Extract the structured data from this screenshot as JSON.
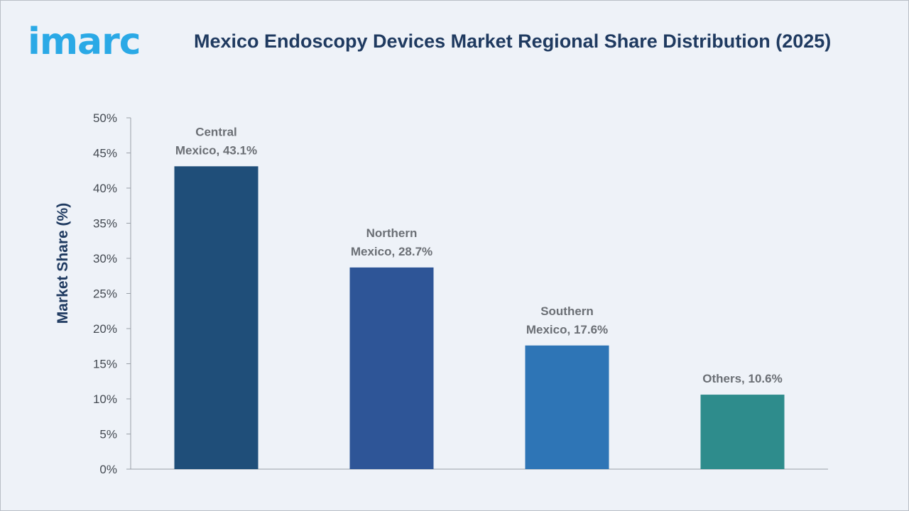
{
  "brand": {
    "logo_text": "imarc",
    "logo_color": "#2aa9e6"
  },
  "chart_data": {
    "type": "bar",
    "title": "Mexico Endoscopy Devices Market Regional Share Distribution (2025)",
    "ylabel": "Market Share (%)",
    "xlabel": "",
    "ylim": [
      0,
      50
    ],
    "yticks": [
      "0%",
      "5%",
      "10%",
      "15%",
      "20%",
      "25%",
      "30%",
      "35%",
      "40%",
      "45%",
      "50%"
    ],
    "categories": [
      "Central Mexico",
      "Northern Mexico",
      "Southern Mexico",
      "Others"
    ],
    "values": [
      43.1,
      28.7,
      17.6,
      10.6
    ],
    "data_labels": [
      [
        "Central",
        "Mexico, 43.1%"
      ],
      [
        "Northern",
        "Mexico, 28.7%"
      ],
      [
        "Southern",
        "Mexico, 17.6%"
      ],
      [
        "Others, 10.6%"
      ]
    ],
    "colors": [
      "#1f4e79",
      "#2e5597",
      "#2e75b6",
      "#2e8c8c"
    ],
    "grid": false,
    "legend": "none"
  }
}
